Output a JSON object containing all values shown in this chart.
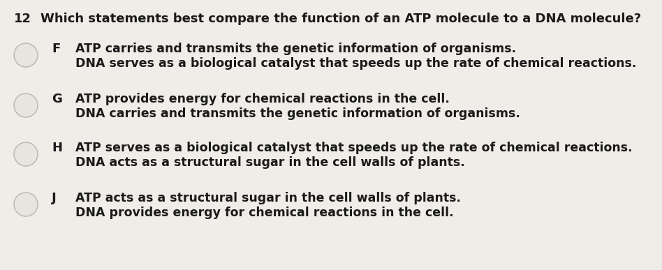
{
  "background_color": "#f0ede8",
  "question_number": "12",
  "question_text": "Which statements best compare the function of an ATP molecule to a DNA molecule?",
  "options": [
    {
      "letter": "F",
      "line1": "ATP carries and transmits the genetic information of organisms.",
      "line2": "DNA serves as a biological catalyst that speeds up the rate of chemical reactions."
    },
    {
      "letter": "G",
      "line1": "ATP provides energy for chemical reactions in the cell.",
      "line2": "DNA carries and transmits the genetic information of organisms."
    },
    {
      "letter": "H",
      "line1": "ATP serves as a biological catalyst that speeds up the rate of chemical reactions.",
      "line2": "DNA acts as a structural sugar in the cell walls of plants."
    },
    {
      "letter": "J",
      "line1": "ATP acts as a structural sugar in the cell walls of plants.",
      "line2": "DNA provides energy for chemical reactions in the cell."
    }
  ],
  "question_fontsize": 13.0,
  "option_letter_fontsize": 13.0,
  "option_text_fontsize": 12.5,
  "text_color": "#1a1a1a",
  "circle_facecolor": "#e8e5e0",
  "circle_edgecolor": "#b8b5b0",
  "fig_width": 9.48,
  "fig_height": 3.87,
  "dpi": 100
}
